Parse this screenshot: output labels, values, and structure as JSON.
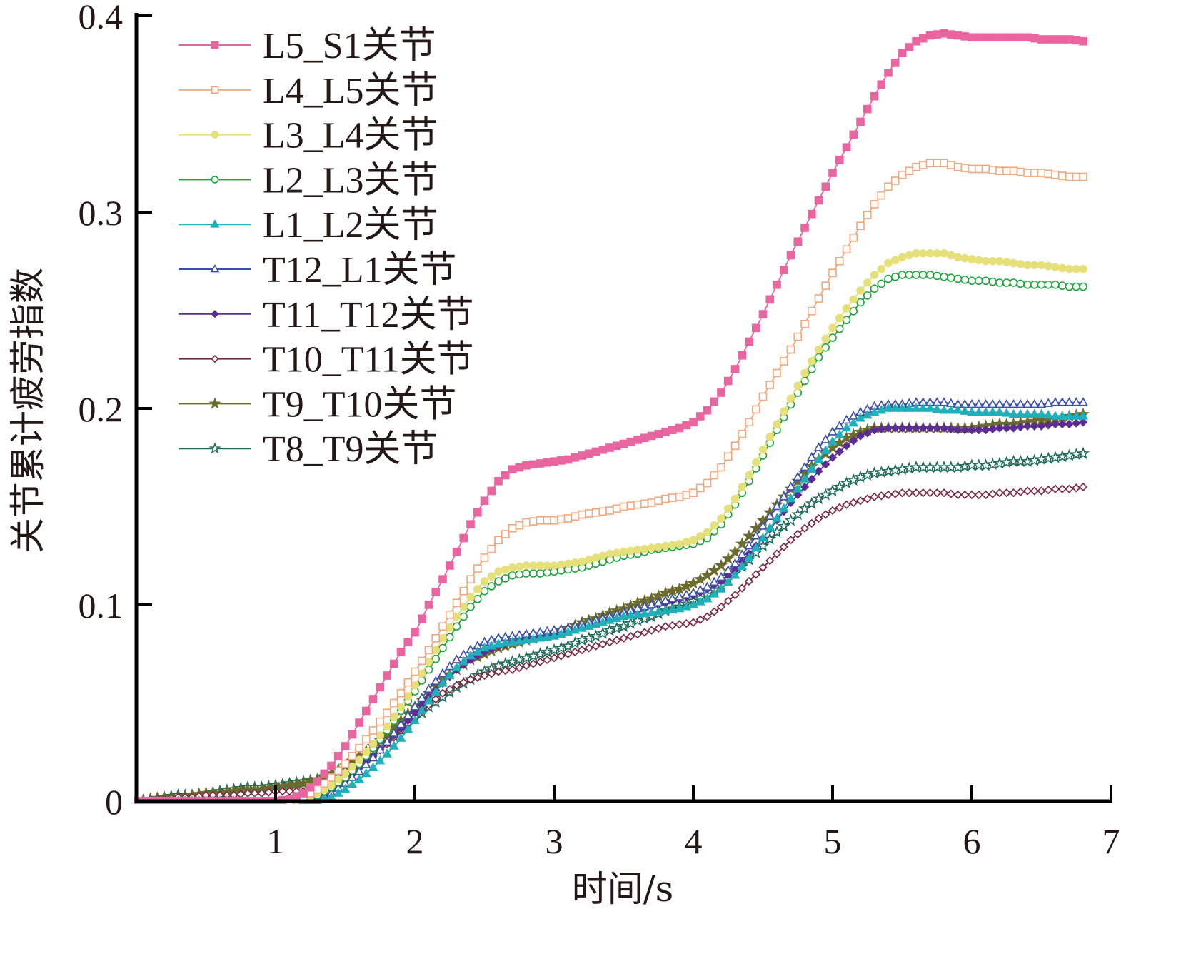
{
  "chart_data": {
    "type": "line",
    "title": "",
    "xlabel": "时间/s",
    "ylabel": "关节累计疲劳指数",
    "xlim": [
      0,
      7
    ],
    "ylim": [
      0,
      0.4
    ],
    "xticks": [
      1,
      2,
      3,
      4,
      5,
      6,
      7
    ],
    "xtick_labels": [
      "1",
      "2",
      "3",
      "4",
      "5",
      "6",
      "7"
    ],
    "yticks": [
      0,
      0.1,
      0.2,
      0.3,
      0.4
    ],
    "ytick_labels": [
      "0",
      "0.1",
      "0.2",
      "0.3",
      "0.4"
    ],
    "grid": false,
    "legend_position": "top-left",
    "x": [
      0.0,
      0.1,
      0.2,
      0.3,
      0.4,
      0.5,
      0.6,
      0.7,
      0.8,
      0.9,
      1.0,
      1.1,
      1.2,
      1.3,
      1.4,
      1.5,
      1.6,
      1.7,
      1.8,
      1.9,
      2.0,
      2.1,
      2.2,
      2.3,
      2.4,
      2.5,
      2.6,
      2.7,
      2.8,
      2.9,
      3.0,
      3.1,
      3.2,
      3.3,
      3.4,
      3.5,
      3.6,
      3.7,
      3.8,
      3.9,
      4.0,
      4.1,
      4.2,
      4.3,
      4.4,
      4.5,
      4.6,
      4.7,
      4.8,
      4.9,
      5.0,
      5.1,
      5.2,
      5.3,
      5.4,
      5.5,
      5.6,
      5.7,
      5.8,
      5.9,
      6.0,
      6.1,
      6.2,
      6.3,
      6.4,
      6.5,
      6.6,
      6.7,
      6.8
    ],
    "series": [
      {
        "name": "L5_S1关节",
        "color": "#e8659f",
        "marker": "square-filled",
        "values": [
          0,
          0,
          0,
          0,
          0,
          0,
          0,
          0,
          0,
          0,
          0,
          0.001,
          0.004,
          0.01,
          0.018,
          0.028,
          0.04,
          0.052,
          0.064,
          0.076,
          0.086,
          0.1,
          0.113,
          0.127,
          0.141,
          0.153,
          0.163,
          0.169,
          0.171,
          0.172,
          0.173,
          0.174,
          0.176,
          0.178,
          0.18,
          0.182,
          0.184,
          0.186,
          0.188,
          0.19,
          0.193,
          0.199,
          0.208,
          0.22,
          0.234,
          0.248,
          0.263,
          0.278,
          0.292,
          0.306,
          0.32,
          0.333,
          0.346,
          0.359,
          0.371,
          0.381,
          0.387,
          0.39,
          0.391,
          0.39,
          0.389,
          0.389,
          0.389,
          0.389,
          0.389,
          0.388,
          0.388,
          0.388,
          0.387
        ]
      },
      {
        "name": "L4_L5关节",
        "color": "#f4a77a",
        "marker": "square-open",
        "values": [
          0,
          0,
          0,
          0,
          0,
          0,
          0,
          0,
          0,
          0,
          0,
          0,
          0.002,
          0.006,
          0.012,
          0.019,
          0.027,
          0.036,
          0.045,
          0.055,
          0.066,
          0.077,
          0.089,
          0.101,
          0.113,
          0.124,
          0.133,
          0.139,
          0.142,
          0.143,
          0.143,
          0.144,
          0.146,
          0.147,
          0.148,
          0.15,
          0.151,
          0.152,
          0.154,
          0.155,
          0.157,
          0.162,
          0.17,
          0.181,
          0.193,
          0.206,
          0.218,
          0.23,
          0.243,
          0.256,
          0.269,
          0.281,
          0.293,
          0.304,
          0.313,
          0.319,
          0.323,
          0.325,
          0.325,
          0.323,
          0.322,
          0.322,
          0.321,
          0.321,
          0.32,
          0.32,
          0.319,
          0.318,
          0.318
        ]
      },
      {
        "name": "L3_L4关节",
        "color": "#e5e07a",
        "marker": "circle-filled",
        "values": [
          0,
          0,
          0,
          0,
          0,
          0,
          0,
          0,
          0,
          0,
          0,
          0,
          0.001,
          0.004,
          0.008,
          0.014,
          0.021,
          0.029,
          0.038,
          0.048,
          0.059,
          0.071,
          0.083,
          0.094,
          0.104,
          0.112,
          0.117,
          0.119,
          0.12,
          0.12,
          0.12,
          0.121,
          0.122,
          0.124,
          0.126,
          0.127,
          0.128,
          0.129,
          0.13,
          0.131,
          0.133,
          0.137,
          0.144,
          0.154,
          0.166,
          0.179,
          0.192,
          0.205,
          0.218,
          0.23,
          0.241,
          0.251,
          0.26,
          0.268,
          0.274,
          0.277,
          0.279,
          0.279,
          0.279,
          0.277,
          0.276,
          0.275,
          0.275,
          0.274,
          0.273,
          0.273,
          0.272,
          0.271,
          0.271
        ]
      },
      {
        "name": "L2_L3关节",
        "color": "#1aa33a",
        "marker": "circle-open",
        "values": [
          0,
          0,
          0,
          0,
          0,
          0,
          0,
          0,
          0,
          0,
          0,
          0,
          0.001,
          0.003,
          0.007,
          0.012,
          0.019,
          0.027,
          0.036,
          0.046,
          0.056,
          0.067,
          0.078,
          0.089,
          0.099,
          0.107,
          0.112,
          0.115,
          0.116,
          0.116,
          0.117,
          0.118,
          0.119,
          0.121,
          0.123,
          0.125,
          0.126,
          0.128,
          0.129,
          0.13,
          0.131,
          0.134,
          0.141,
          0.151,
          0.163,
          0.176,
          0.189,
          0.202,
          0.214,
          0.226,
          0.236,
          0.245,
          0.254,
          0.261,
          0.266,
          0.268,
          0.268,
          0.268,
          0.267,
          0.266,
          0.265,
          0.265,
          0.264,
          0.264,
          0.263,
          0.263,
          0.263,
          0.262,
          0.262
        ]
      },
      {
        "name": "L1_L2关节",
        "color": "#1fb0b9",
        "marker": "triangle-filled",
        "values": [
          0,
          0,
          0,
          0,
          0,
          0,
          0,
          0,
          0,
          0,
          0,
          0,
          0,
          0,
          0.002,
          0.006,
          0.011,
          0.017,
          0.024,
          0.032,
          0.041,
          0.051,
          0.06,
          0.068,
          0.074,
          0.078,
          0.08,
          0.081,
          0.082,
          0.083,
          0.084,
          0.086,
          0.088,
          0.09,
          0.092,
          0.094,
          0.095,
          0.096,
          0.097,
          0.098,
          0.1,
          0.103,
          0.108,
          0.115,
          0.124,
          0.134,
          0.144,
          0.154,
          0.164,
          0.174,
          0.183,
          0.19,
          0.195,
          0.198,
          0.2,
          0.2,
          0.2,
          0.2,
          0.199,
          0.199,
          0.198,
          0.198,
          0.198,
          0.197,
          0.197,
          0.197,
          0.196,
          0.196,
          0.196
        ]
      },
      {
        "name": "T12_L1关节",
        "color": "#3c4fa8",
        "marker": "triangle-open",
        "values": [
          0,
          0,
          0,
          0,
          0,
          0,
          0,
          0,
          0,
          0,
          0,
          0,
          0,
          0.001,
          0.004,
          0.009,
          0.015,
          0.022,
          0.03,
          0.039,
          0.048,
          0.057,
          0.065,
          0.072,
          0.077,
          0.081,
          0.083,
          0.084,
          0.085,
          0.086,
          0.087,
          0.088,
          0.09,
          0.092,
          0.094,
          0.096,
          0.098,
          0.1,
          0.102,
          0.104,
          0.106,
          0.109,
          0.114,
          0.121,
          0.13,
          0.14,
          0.15,
          0.16,
          0.17,
          0.18,
          0.188,
          0.194,
          0.198,
          0.201,
          0.202,
          0.202,
          0.203,
          0.203,
          0.203,
          0.202,
          0.202,
          0.202,
          0.202,
          0.202,
          0.202,
          0.202,
          0.203,
          0.203,
          0.203
        ]
      },
      {
        "name": "T11_T12关节",
        "color": "#5b2c94",
        "marker": "diamond-filled",
        "values": [
          0,
          0,
          0,
          0,
          0,
          0,
          0,
          0,
          0,
          0,
          0,
          0,
          0,
          0.002,
          0.006,
          0.011,
          0.017,
          0.023,
          0.03,
          0.037,
          0.045,
          0.053,
          0.06,
          0.067,
          0.072,
          0.076,
          0.079,
          0.081,
          0.083,
          0.084,
          0.085,
          0.087,
          0.089,
          0.091,
          0.093,
          0.095,
          0.097,
          0.099,
          0.101,
          0.103,
          0.105,
          0.108,
          0.112,
          0.118,
          0.126,
          0.134,
          0.143,
          0.152,
          0.16,
          0.168,
          0.175,
          0.181,
          0.186,
          0.189,
          0.19,
          0.19,
          0.19,
          0.19,
          0.19,
          0.189,
          0.189,
          0.189,
          0.19,
          0.19,
          0.191,
          0.191,
          0.192,
          0.192,
          0.193
        ]
      },
      {
        "name": "T10_T11关节",
        "color": "#7a2a3f",
        "marker": "diamond-open",
        "values": [
          0,
          0.001,
          0.001,
          0.002,
          0.002,
          0.003,
          0.003,
          0.003,
          0.004,
          0.004,
          0.005,
          0.005,
          0.005,
          0.006,
          0.008,
          0.012,
          0.017,
          0.023,
          0.029,
          0.036,
          0.043,
          0.049,
          0.055,
          0.059,
          0.062,
          0.064,
          0.066,
          0.067,
          0.069,
          0.071,
          0.073,
          0.075,
          0.077,
          0.079,
          0.081,
          0.083,
          0.085,
          0.087,
          0.089,
          0.09,
          0.091,
          0.094,
          0.099,
          0.105,
          0.112,
          0.119,
          0.126,
          0.133,
          0.139,
          0.144,
          0.148,
          0.151,
          0.153,
          0.155,
          0.156,
          0.157,
          0.157,
          0.157,
          0.157,
          0.156,
          0.156,
          0.156,
          0.157,
          0.157,
          0.158,
          0.158,
          0.159,
          0.159,
          0.16
        ]
      },
      {
        "name": "T9_T10关节",
        "color": "#6b6b2b",
        "marker": "star-filled",
        "values": [
          0,
          0.001,
          0.002,
          0.002,
          0.003,
          0.004,
          0.004,
          0.005,
          0.006,
          0.006,
          0.007,
          0.008,
          0.009,
          0.011,
          0.014,
          0.018,
          0.023,
          0.028,
          0.034,
          0.041,
          0.048,
          0.055,
          0.062,
          0.067,
          0.072,
          0.075,
          0.078,
          0.08,
          0.082,
          0.084,
          0.086,
          0.088,
          0.091,
          0.093,
          0.096,
          0.098,
          0.101,
          0.103,
          0.106,
          0.108,
          0.111,
          0.115,
          0.12,
          0.127,
          0.135,
          0.143,
          0.151,
          0.159,
          0.167,
          0.174,
          0.18,
          0.185,
          0.188,
          0.19,
          0.19,
          0.19,
          0.19,
          0.19,
          0.19,
          0.19,
          0.19,
          0.191,
          0.192,
          0.192,
          0.193,
          0.194,
          0.195,
          0.196,
          0.197
        ]
      },
      {
        "name": "T8_T9关节",
        "color": "#1e6b5a",
        "marker": "star-open",
        "values": [
          0,
          0.001,
          0.002,
          0.003,
          0.003,
          0.004,
          0.005,
          0.006,
          0.007,
          0.007,
          0.008,
          0.009,
          0.01,
          0.011,
          0.013,
          0.016,
          0.02,
          0.025,
          0.03,
          0.036,
          0.042,
          0.048,
          0.053,
          0.058,
          0.062,
          0.066,
          0.069,
          0.071,
          0.073,
          0.075,
          0.077,
          0.079,
          0.082,
          0.084,
          0.087,
          0.089,
          0.092,
          0.094,
          0.097,
          0.099,
          0.102,
          0.105,
          0.11,
          0.116,
          0.123,
          0.13,
          0.137,
          0.143,
          0.149,
          0.154,
          0.158,
          0.162,
          0.165,
          0.167,
          0.168,
          0.169,
          0.17,
          0.17,
          0.17,
          0.17,
          0.171,
          0.171,
          0.172,
          0.173,
          0.173,
          0.174,
          0.175,
          0.176,
          0.177
        ]
      }
    ]
  }
}
